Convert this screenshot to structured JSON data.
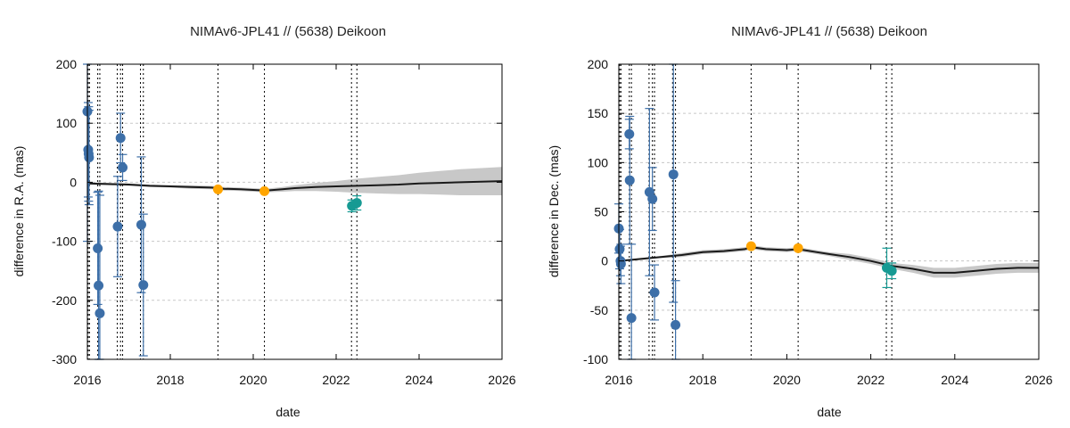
{
  "chart_data": [
    {
      "type": "scatter",
      "title": "NIMAv6-JPL41 // (5638) Deikoon",
      "xlabel": "date",
      "ylabel": "difference in R.A. (mas)",
      "xlim": [
        2016,
        2026
      ],
      "ylim": [
        -300,
        200
      ],
      "xticks": [
        "2016",
        "2018",
        "2020",
        "2022",
        "2024",
        "2026"
      ],
      "yticks": [
        "200",
        "100",
        "0",
        "-100",
        "-200",
        "-300"
      ],
      "grid": true,
      "colors": {
        "blue": "#3d6fa8",
        "orange": "#ffa500",
        "teal": "#169a93",
        "band": "#c8c8c8",
        "curve": "#1a1a1a"
      },
      "vlines": [
        2016.02,
        2016.05,
        2016.25,
        2016.3,
        2016.72,
        2016.8,
        2016.85,
        2017.28,
        2017.35,
        2019.15,
        2020.27,
        2022.37,
        2022.5
      ],
      "model_curve": {
        "x": [
          2016,
          2016.5,
          2017,
          2017.5,
          2018,
          2018.5,
          2019,
          2019.3,
          2019.7,
          2020,
          2020.3,
          2020.7,
          2021,
          2021.5,
          2022,
          2022.5,
          2023,
          2023.5,
          2024,
          2024.5,
          2025,
          2025.5,
          2026
        ],
        "y": [
          -2,
          -3,
          -4,
          -6,
          -7,
          -8,
          -9,
          -11,
          -12,
          -13,
          -14,
          -12,
          -10,
          -8,
          -7,
          -6,
          -5,
          -4,
          -2,
          -1,
          0,
          1,
          2
        ],
        "band": [
          2,
          2,
          2,
          2,
          2,
          3,
          3,
          3,
          3,
          3,
          3,
          4,
          5,
          7,
          9,
          12,
          14,
          16,
          18,
          20,
          22,
          23,
          24
        ]
      },
      "series": [
        {
          "color_key": "blue",
          "points": [
            {
              "x": 2016.0,
              "y": 120,
              "err": 220
            },
            {
              "x": 2016.02,
              "y": 55,
              "err": 80
            },
            {
              "x": 2016.03,
              "y": 48,
              "err": 80
            },
            {
              "x": 2016.04,
              "y": 42,
              "err": 80
            },
            {
              "x": 2016.25,
              "y": -112,
              "err": 95
            },
            {
              "x": 2016.27,
              "y": -175,
              "err": 160
            },
            {
              "x": 2016.3,
              "y": -222,
              "err": 200
            },
            {
              "x": 2016.73,
              "y": -75,
              "err": 85
            },
            {
              "x": 2016.8,
              "y": 75,
              "err": 42
            },
            {
              "x": 2016.85,
              "y": 25,
              "err": 22
            },
            {
              "x": 2017.3,
              "y": -72,
              "err": 115
            },
            {
              "x": 2017.35,
              "y": -174,
              "err": 120
            }
          ]
        },
        {
          "color_key": "orange",
          "points": [
            {
              "x": 2019.15,
              "y": -12,
              "err": 0
            },
            {
              "x": 2020.27,
              "y": -15,
              "err": 0
            }
          ]
        },
        {
          "color_key": "teal",
          "points": [
            {
              "x": 2022.38,
              "y": -40,
              "err": 10
            },
            {
              "x": 2022.5,
              "y": -35,
              "err": 12
            }
          ]
        }
      ]
    },
    {
      "type": "scatter",
      "title": "NIMAv6-JPL41 // (5638) Deikoon",
      "xlabel": "date",
      "ylabel": "difference in Dec. (mas)",
      "xlim": [
        2016,
        2026
      ],
      "ylim": [
        -100,
        200
      ],
      "xticks": [
        "2016",
        "2018",
        "2020",
        "2022",
        "2024",
        "2026"
      ],
      "yticks": [
        "200",
        "150",
        "100",
        "50",
        "0",
        "-50",
        "-100"
      ],
      "grid": true,
      "colors": {
        "blue": "#3d6fa8",
        "orange": "#ffa500",
        "teal": "#169a93",
        "band": "#c8c8c8",
        "curve": "#1a1a1a"
      },
      "vlines": [
        2016.02,
        2016.05,
        2016.25,
        2016.3,
        2016.72,
        2016.8,
        2016.85,
        2017.28,
        2017.35,
        2019.15,
        2020.27,
        2022.37,
        2022.5
      ],
      "model_curve": {
        "x": [
          2016,
          2016.5,
          2017,
          2017.5,
          2018,
          2018.5,
          2019,
          2019.15,
          2019.5,
          2020,
          2020.27,
          2020.7,
          2021,
          2021.5,
          2022,
          2022.5,
          2023,
          2023.5,
          2024,
          2024.5,
          2025,
          2025.5,
          2026
        ],
        "y": [
          0,
          2,
          4,
          6,
          9,
          10,
          12,
          14,
          12,
          11,
          12,
          9,
          7,
          4,
          0,
          -5,
          -8,
          -12,
          -12,
          -10,
          -8,
          -7,
          -7
        ],
        "band": [
          1,
          1,
          1,
          2,
          2,
          2,
          2,
          2,
          2,
          2,
          2,
          2,
          2,
          3,
          3,
          3,
          4,
          5,
          5,
          5,
          5,
          5,
          5
        ]
      },
      "series": [
        {
          "color_key": "blue",
          "points": [
            {
              "x": 2016.0,
              "y": 33,
              "err": 25
            },
            {
              "x": 2016.02,
              "y": 12,
              "err": 20
            },
            {
              "x": 2016.04,
              "y": 0,
              "err": 15
            },
            {
              "x": 2016.05,
              "y": -3,
              "err": 20
            },
            {
              "x": 2016.25,
              "y": 129,
              "err": 15
            },
            {
              "x": 2016.26,
              "y": 82,
              "err": 65
            },
            {
              "x": 2016.3,
              "y": -58,
              "err": 75
            },
            {
              "x": 2016.73,
              "y": 70,
              "err": 85
            },
            {
              "x": 2016.8,
              "y": 63,
              "err": 32
            },
            {
              "x": 2016.85,
              "y": -32,
              "err": 28
            },
            {
              "x": 2017.3,
              "y": 88,
              "err": 130
            },
            {
              "x": 2017.35,
              "y": -65,
              "err": 45
            }
          ]
        },
        {
          "color_key": "orange",
          "points": [
            {
              "x": 2019.15,
              "y": 15,
              "err": 0
            },
            {
              "x": 2020.27,
              "y": 13,
              "err": 0
            }
          ]
        },
        {
          "color_key": "teal",
          "points": [
            {
              "x": 2022.38,
              "y": -7,
              "err": 20
            },
            {
              "x": 2022.5,
              "y": -10,
              "err": 8
            }
          ]
        }
      ]
    }
  ]
}
